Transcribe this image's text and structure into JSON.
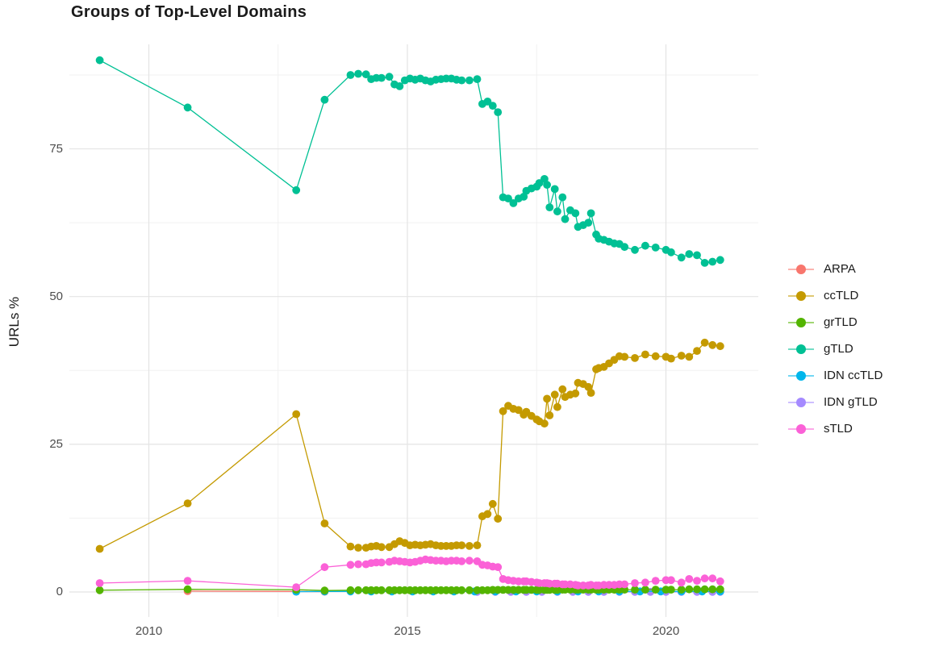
{
  "title": "Groups of Top-Level Domains",
  "axes": {
    "y_label": "URLs %",
    "x_ticks": [
      "2010",
      "2015",
      "2020"
    ],
    "y_ticks": [
      "0",
      "25",
      "50",
      "75"
    ]
  },
  "legend": {
    "items": [
      {
        "label": "ARPA",
        "color": "#F8766D"
      },
      {
        "label": "ccTLD",
        "color": "#C49A00"
      },
      {
        "label": "grTLD",
        "color": "#53B400"
      },
      {
        "label": "gTLD",
        "color": "#00C094"
      },
      {
        "label": "IDN ccTLD",
        "color": "#00B6EB"
      },
      {
        "label": "IDN gTLD",
        "color": "#A58AFF"
      },
      {
        "label": "sTLD",
        "color": "#FB61D7"
      }
    ]
  },
  "chart_data": {
    "type": "line",
    "title": "Groups of Top-Level Domains",
    "xlabel": "",
    "ylabel": "URLs %",
    "xlim": [
      2008.6,
      2021.7
    ],
    "ylim": [
      -4,
      93
    ],
    "grid": true,
    "legend_position": "right",
    "x_major_ticks": [
      2010,
      2015,
      2020
    ],
    "x_minor_ticks": [
      2012.5,
      2017.5
    ],
    "y_major_ticks": [
      0,
      25,
      50,
      75
    ],
    "y_minor_ticks": [
      12.5,
      37.5,
      62.5,
      87.5
    ],
    "x": [
      2009.05,
      2010.75,
      2012.85,
      2013.4,
      2013.9,
      2014.05,
      2014.2,
      2014.3,
      2014.4,
      2014.5,
      2014.65,
      2014.75,
      2014.85,
      2014.95,
      2015.05,
      2015.15,
      2015.25,
      2015.35,
      2015.45,
      2015.55,
      2015.65,
      2015.75,
      2015.85,
      2015.95,
      2016.05,
      2016.2,
      2016.35,
      2016.45,
      2016.55,
      2016.65,
      2016.75,
      2016.85,
      2016.95,
      2017.05,
      2017.15,
      2017.25,
      2017.3,
      2017.4,
      2017.5,
      2017.55,
      2017.65,
      2017.7,
      2017.75,
      2017.85,
      2017.9,
      2018.0,
      2018.05,
      2018.15,
      2018.25,
      2018.3,
      2018.4,
      2018.5,
      2018.55,
      2018.65,
      2018.7,
      2018.8,
      2018.9,
      2019.0,
      2019.1,
      2019.2,
      2019.4,
      2019.6,
      2019.8,
      2020.0,
      2020.1,
      2020.3,
      2020.45,
      2020.6,
      2020.75,
      2020.9,
      2021.05
    ],
    "series": [
      {
        "name": "ARPA",
        "color": "#F8766D",
        "x": [
          2010.75,
          2012.85,
          2013.4
        ],
        "values": [
          0.15,
          0.1,
          0.05
        ]
      },
      {
        "name": "ccTLD",
        "color": "#C49A00",
        "values": [
          7.3,
          15.0,
          30.1,
          11.6,
          7.7,
          7.5,
          7.5,
          7.7,
          7.8,
          7.6,
          7.6,
          8.1,
          8.6,
          8.3,
          7.9,
          8.0,
          7.9,
          8.0,
          8.1,
          7.9,
          7.8,
          7.8,
          7.8,
          7.9,
          7.9,
          7.8,
          7.9,
          12.8,
          13.2,
          14.9,
          12.4,
          30.6,
          31.5,
          31.0,
          30.8,
          30.0,
          30.5,
          29.8,
          29.2,
          28.9,
          28.5,
          32.7,
          29.9,
          33.4,
          31.3,
          34.3,
          33.0,
          33.4,
          33.6,
          35.4,
          35.2,
          34.7,
          33.7,
          37.7,
          37.9,
          38.1,
          38.7,
          39.3,
          39.9,
          39.8,
          39.6,
          40.2,
          39.9,
          39.8,
          39.5,
          40.0,
          39.8,
          40.8,
          42.2,
          41.8,
          41.6
        ]
      },
      {
        "name": "grTLD",
        "color": "#53B400",
        "values": [
          0.3,
          0.45,
          0.4,
          0.25,
          0.3,
          0.3,
          0.3,
          0.3,
          0.3,
          0.3,
          0.3,
          0.3,
          0.3,
          0.3,
          0.3,
          0.3,
          0.3,
          0.3,
          0.3,
          0.3,
          0.3,
          0.3,
          0.3,
          0.3,
          0.3,
          0.3,
          0.3,
          0.3,
          0.3,
          0.35,
          0.35,
          0.35,
          0.35,
          0.35,
          0.35,
          0.35,
          0.35,
          0.35,
          0.35,
          0.35,
          0.35,
          0.35,
          0.35,
          0.35,
          0.35,
          0.4,
          0.4,
          0.4,
          0.4,
          0.4,
          0.4,
          0.4,
          0.4,
          0.4,
          0.4,
          0.4,
          0.4,
          0.4,
          0.4,
          0.4,
          0.4,
          0.4,
          0.4,
          0.4,
          0.4,
          0.4,
          0.45,
          0.45,
          0.45,
          0.45,
          0.45
        ]
      },
      {
        "name": "gTLD",
        "color": "#00C094",
        "values": [
          90.0,
          82.0,
          68.0,
          83.3,
          87.5,
          87.7,
          87.6,
          86.8,
          87.0,
          87.0,
          87.2,
          85.9,
          85.6,
          86.6,
          86.9,
          86.7,
          86.9,
          86.6,
          86.4,
          86.7,
          86.8,
          86.9,
          86.9,
          86.7,
          86.6,
          86.6,
          86.8,
          82.6,
          83.0,
          82.3,
          81.2,
          66.8,
          66.6,
          65.8,
          66.6,
          66.9,
          67.9,
          68.3,
          68.6,
          69.2,
          69.9,
          68.9,
          65.1,
          68.2,
          64.4,
          66.8,
          63.1,
          64.6,
          64.1,
          61.8,
          62.1,
          62.5,
          64.1,
          60.5,
          59.8,
          59.6,
          59.3,
          59.0,
          58.9,
          58.4,
          57.9,
          58.6,
          58.3,
          57.9,
          57.5,
          56.6,
          57.2,
          57.0,
          55.7,
          55.9,
          56.2
        ]
      },
      {
        "name": "IDN ccTLD",
        "color": "#00B6EB",
        "x": [
          2012.85,
          2013.4,
          2013.9,
          2014.3,
          2014.7,
          2015.1,
          2015.5,
          2015.9,
          2016.3,
          2016.7,
          2017.1,
          2017.5,
          2017.9,
          2018.3,
          2018.7,
          2019.1,
          2019.5,
          2019.9,
          2020.3,
          2020.7,
          2021.05
        ],
        "values": [
          0.05,
          0.1,
          0.1,
          0.1,
          0.1,
          0.1,
          0.1,
          0.1,
          0.1,
          0.1,
          0.1,
          0.1,
          0.1,
          0.1,
          0.1,
          0.1,
          0.1,
          0.1,
          0.1,
          0.1,
          0.1
        ]
      },
      {
        "name": "IDN gTLD",
        "color": "#A58AFF",
        "x": [
          2016.35,
          2016.7,
          2017.0,
          2017.3,
          2017.6,
          2017.9,
          2018.2,
          2018.5,
          2018.8,
          2019.1,
          2019.4,
          2019.7,
          2020.0,
          2020.3,
          2020.6,
          2020.9,
          2021.05
        ],
        "values": [
          0.03,
          0.03,
          0.03,
          0.03,
          0.03,
          0.03,
          0.03,
          0.03,
          0.03,
          0.03,
          0.03,
          0.03,
          0.03,
          0.03,
          0.03,
          0.03,
          0.03
        ]
      },
      {
        "name": "sTLD",
        "color": "#FB61D7",
        "values": [
          1.5,
          1.9,
          0.8,
          4.2,
          4.6,
          4.7,
          4.7,
          4.9,
          5.0,
          5.0,
          5.1,
          5.3,
          5.2,
          5.1,
          5.0,
          5.1,
          5.3,
          5.5,
          5.4,
          5.3,
          5.3,
          5.2,
          5.3,
          5.3,
          5.2,
          5.3,
          5.2,
          4.6,
          4.5,
          4.3,
          4.2,
          2.2,
          2.0,
          1.9,
          1.8,
          1.8,
          1.8,
          1.7,
          1.6,
          1.5,
          1.5,
          1.5,
          1.4,
          1.4,
          1.4,
          1.3,
          1.3,
          1.3,
          1.2,
          1.1,
          1.1,
          1.1,
          1.2,
          1.1,
          1.1,
          1.2,
          1.2,
          1.2,
          1.3,
          1.3,
          1.5,
          1.6,
          1.9,
          2.0,
          2.0,
          1.6,
          2.2,
          1.9,
          2.3,
          2.3,
          1.8
        ]
      }
    ]
  }
}
